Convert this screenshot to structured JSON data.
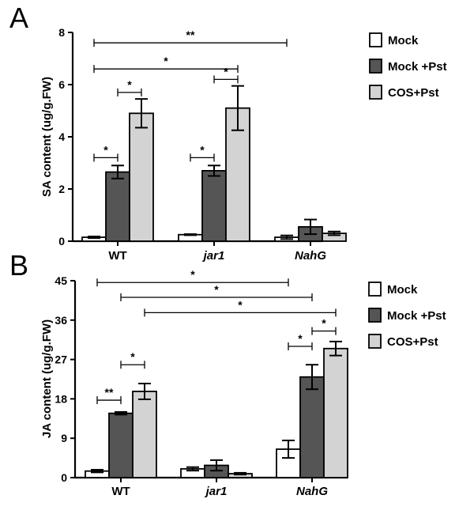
{
  "colors": {
    "mock": "#ffffff",
    "mock_pst": "#555555",
    "cos_pst": "#d3d3d3"
  },
  "chart_data": [
    {
      "type": "bar",
      "panel": "A",
      "ylabel": "SA content (ug/g.FW)",
      "ylim": [
        0,
        8
      ],
      "yticks": [
        0,
        2,
        4,
        6,
        8
      ],
      "categories": [
        "WT",
        "jar1",
        "NahG"
      ],
      "category_italic": [
        false,
        true,
        true
      ],
      "legend": [
        "Mock",
        "Mock +Pst",
        "COS+Pst"
      ],
      "series": [
        {
          "name": "Mock",
          "values": [
            0.15,
            0.25,
            0.15
          ],
          "errors": [
            0.03,
            0.02,
            0.07
          ]
        },
        {
          "name": "Mock +Pst",
          "values": [
            2.65,
            2.7,
            0.55
          ],
          "errors": [
            0.25,
            0.2,
            0.28
          ]
        },
        {
          "name": "COS+Pst",
          "values": [
            4.9,
            5.1,
            0.3
          ],
          "errors": [
            0.55,
            0.85,
            0.07
          ]
        }
      ],
      "significance": [
        {
          "from": [
            0,
            0
          ],
          "to": [
            2,
            0
          ],
          "y": 7.6,
          "label": "**"
        },
        {
          "from": [
            0,
            0
          ],
          "to": [
            1,
            2
          ],
          "y": 6.6,
          "label": "*"
        },
        {
          "from": [
            0,
            1
          ],
          "to": [
            0,
            2
          ],
          "y": 5.7,
          "label": "*"
        },
        {
          "from": [
            0,
            0
          ],
          "to": [
            0,
            1
          ],
          "y": 3.2,
          "label": "*"
        },
        {
          "from": [
            1,
            1
          ],
          "to": [
            1,
            2
          ],
          "y": 6.2,
          "label": "*"
        },
        {
          "from": [
            1,
            0
          ],
          "to": [
            1,
            1
          ],
          "y": 3.2,
          "label": "*"
        }
      ]
    },
    {
      "type": "bar",
      "panel": "B",
      "ylabel": "JA content (ug/g.FW)",
      "ylim": [
        0,
        45
      ],
      "yticks": [
        0,
        9,
        18,
        27,
        36,
        45
      ],
      "categories": [
        "WT",
        "jar1",
        "NahG"
      ],
      "category_italic": [
        false,
        true,
        true
      ],
      "legend": [
        "Mock",
        "Mock +Pst",
        "COS+Pst"
      ],
      "series": [
        {
          "name": "Mock",
          "values": [
            1.5,
            2.0,
            6.5
          ],
          "errors": [
            0.3,
            0.4,
            2.0
          ]
        },
        {
          "name": "Mock +Pst",
          "values": [
            14.7,
            2.8,
            23.0
          ],
          "errors": [
            0.3,
            1.2,
            2.8
          ]
        },
        {
          "name": "COS+Pst",
          "values": [
            19.7,
            0.9,
            29.5
          ],
          "errors": [
            1.8,
            0.2,
            1.6
          ]
        }
      ],
      "significance": [
        {
          "from": [
            0,
            0
          ],
          "to": [
            2,
            0
          ],
          "y": 44.6,
          "label": "*"
        },
        {
          "from": [
            0,
            1
          ],
          "to": [
            2,
            1
          ],
          "y": 41.2,
          "label": "*"
        },
        {
          "from": [
            0,
            2
          ],
          "to": [
            2,
            2
          ],
          "y": 37.7,
          "label": "*"
        },
        {
          "from": [
            0,
            0
          ],
          "to": [
            0,
            1
          ],
          "y": 17.7,
          "label": "**"
        },
        {
          "from": [
            0,
            1
          ],
          "to": [
            0,
            2
          ],
          "y": 25.8,
          "label": "*"
        },
        {
          "from": [
            2,
            0
          ],
          "to": [
            2,
            1
          ],
          "y": 30.0,
          "label": "*"
        },
        {
          "from": [
            2,
            1
          ],
          "to": [
            2,
            2
          ],
          "y": 33.5,
          "label": "*"
        }
      ]
    }
  ]
}
